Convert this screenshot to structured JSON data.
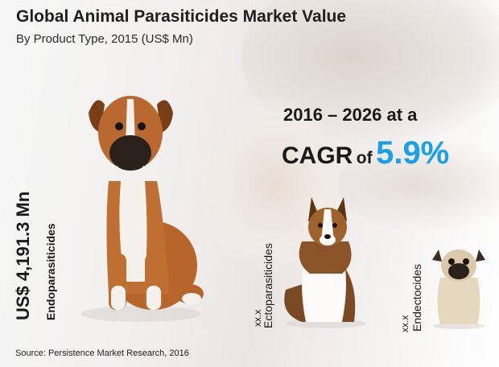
{
  "chart_data": {
    "type": "bar",
    "title": "Global Animal Parasiticides Market Value",
    "subtitle": "By Product Type, 2015 (US$ Mn)",
    "categories": [
      "Endoparasiticides",
      "Ectoparasiticides",
      "Endectocides"
    ],
    "value_labels": [
      "US$ 4,191.3 Mn",
      "xx.x",
      "xx.x"
    ],
    "cagr": {
      "period_text": "2016 – 2026 at a",
      "cagr_word": "CAGR",
      "of_word": "of",
      "value_text": "5.9%"
    },
    "source": "Source: Persistence Market Research, 2016",
    "colors": {
      "accent": "#1aa0e6",
      "text": "#1a1a1a"
    },
    "bars_drawn_as": [
      "boxer-dog",
      "sheltie-dog",
      "pug-dog"
    ]
  }
}
